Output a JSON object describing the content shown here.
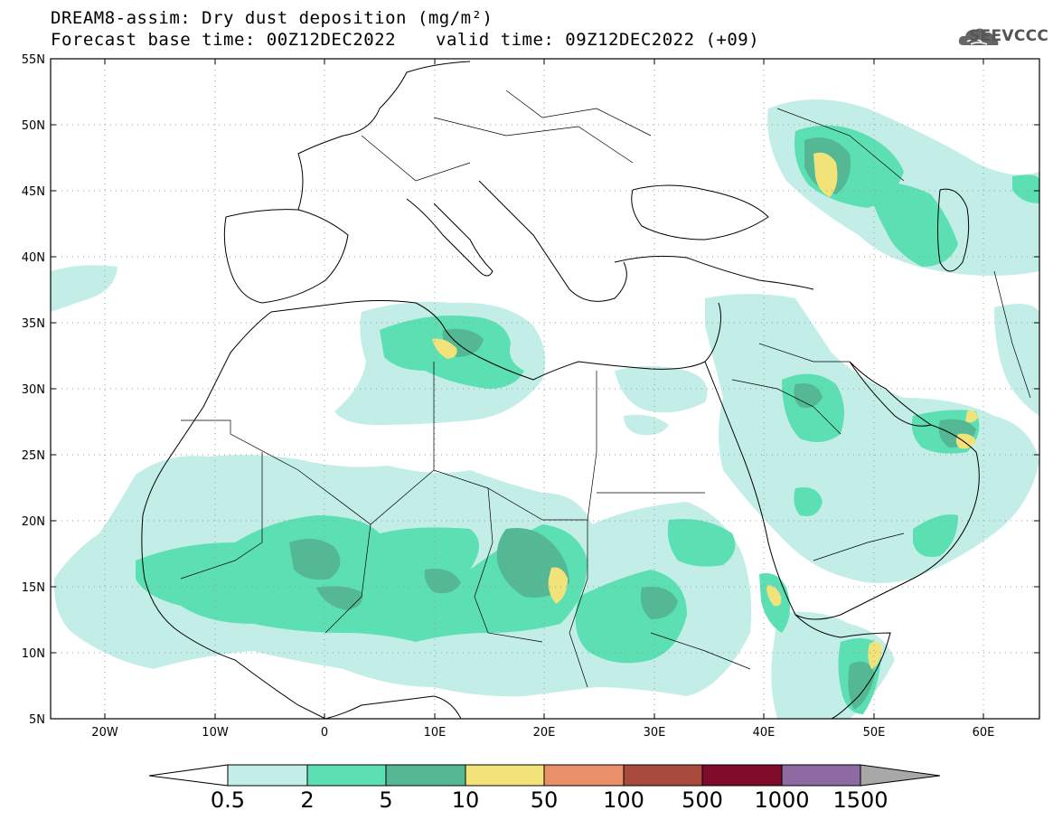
{
  "header": {
    "title_line1": "DREAM8-assim: Dry dust deposition (mg/m²)",
    "title_line2_left": "Forecast base time: 00Z12DEC2022",
    "title_line2_right": "valid time: 09Z12DEC2022 (+09)",
    "logo_text": "SEEVCCC"
  },
  "map": {
    "lat_labels": [
      "55N",
      "50N",
      "45N",
      "40N",
      "35N",
      "30N",
      "25N",
      "20N",
      "15N",
      "10N",
      "5N"
    ],
    "lon_labels": [
      "20W",
      "10W",
      "0",
      "10E",
      "20E",
      "30E",
      "40E",
      "50E",
      "60E"
    ],
    "colors": {
      "c05": "#c3eee7",
      "c2": "#5ddfb4",
      "c5": "#53b893",
      "c10": "#f1e37a"
    }
  },
  "colorbar": {
    "labels": [
      "0.5",
      "2",
      "5",
      "10",
      "50",
      "100",
      "500",
      "1000",
      "1500"
    ],
    "colors": [
      "#c3eee7",
      "#5ddfb4",
      "#53b893",
      "#f1e37a",
      "#ea9068",
      "#a84b3c",
      "#7f0b2b",
      "#8d6aa1",
      "#a8a8a8"
    ]
  }
}
